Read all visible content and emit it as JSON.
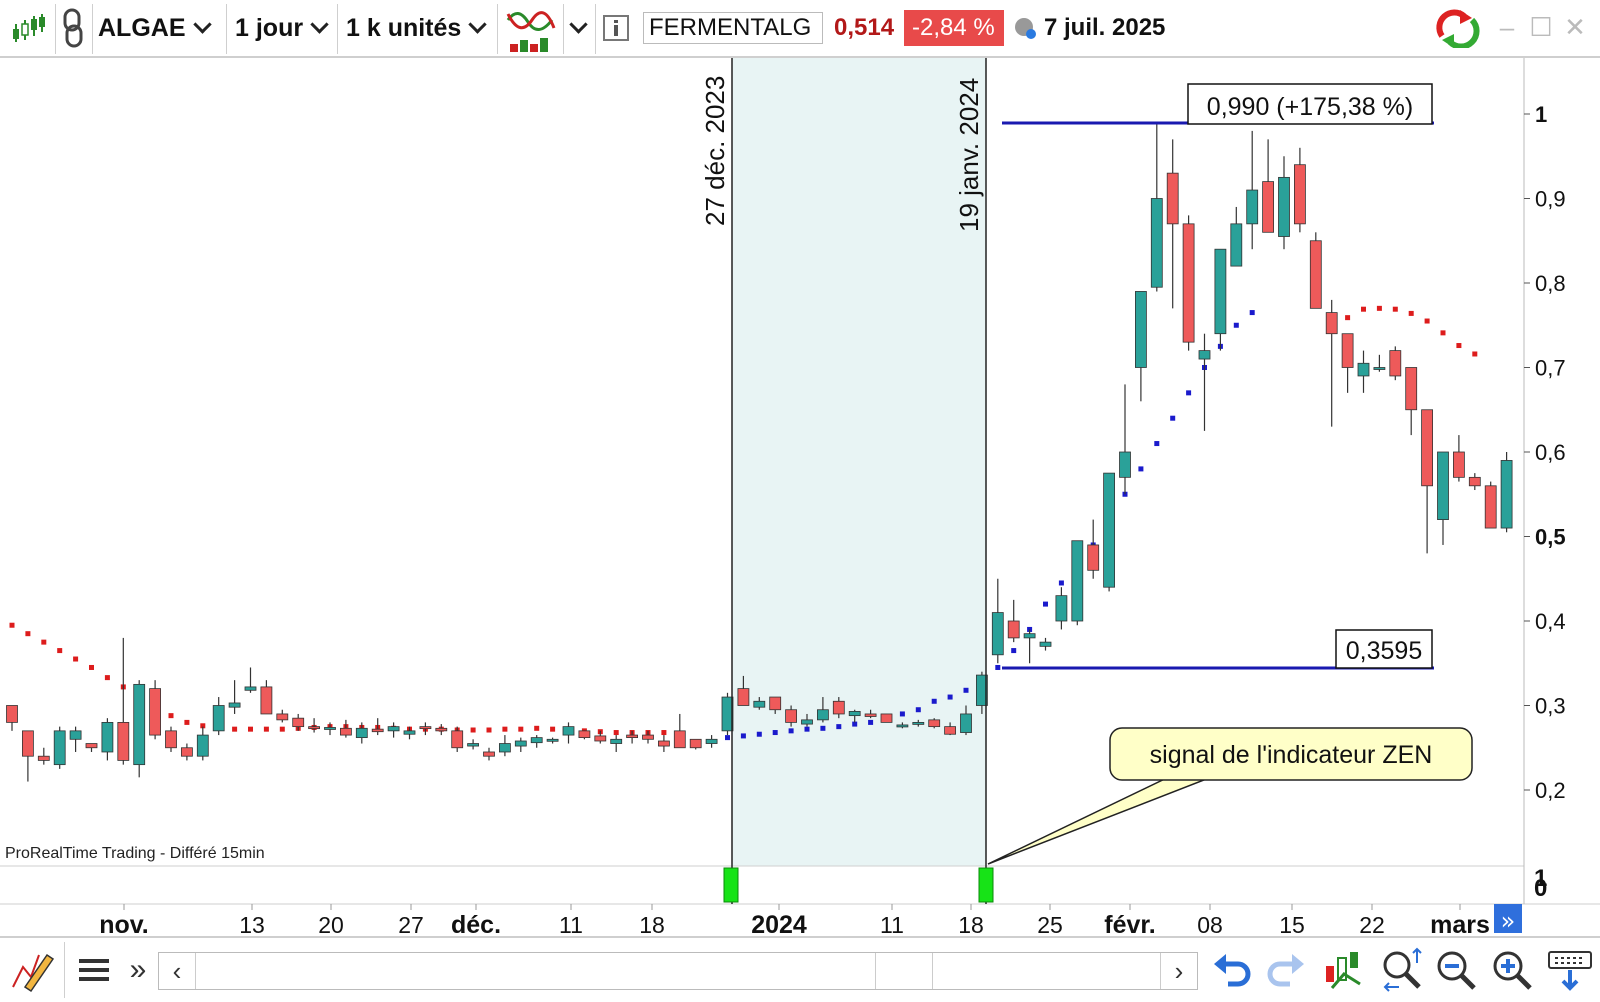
{
  "toolbar": {
    "symbol": "ALGAE",
    "timeframe": "1 jour",
    "units": "1 k unités",
    "instrument_name": "FERMENTALG",
    "last_price": "0,514",
    "change_pct": "-2,84 %",
    "date": "7 juil. 2025",
    "icons": [
      "candlestick-icon",
      "link-icon",
      "indicator-icon",
      "info-icon",
      "clock-icon",
      "refresh-icon",
      "minimize-icon",
      "maximize-icon",
      "close-icon"
    ]
  },
  "chart": {
    "watermark": "ProRealTime Trading - Différé 15min",
    "vlines": [
      "27 déc. 2023",
      "19 janv. 2024"
    ],
    "high_label": "0,990 (+175,38 %)",
    "low_label": "0,3595",
    "callout": "signal de l'indicateur ZEN",
    "y_ticks": [
      "1",
      "0,9",
      "0,8",
      "0,7",
      "0,6",
      "0,5",
      "0,4",
      "0,3",
      "0,2"
    ],
    "sub_ticks": [
      "1",
      "0"
    ],
    "x_ticks": [
      "nov.",
      "13",
      "20",
      "27",
      "déc.",
      "11",
      "18",
      "2024",
      "11",
      "18",
      "25",
      "févr.",
      "08",
      "15",
      "22",
      "mars"
    ],
    "colors": {
      "up": "#2aa199",
      "down": "#ee5a5a",
      "dots_down": "#dd1c1c",
      "dots_up": "#1a1acc",
      "band": "#e8f4f4",
      "hline": "#1a1ab0",
      "signal": "#17e317"
    }
  },
  "chart_data": {
    "type": "candlestick",
    "x_axis": [
      "nov.",
      "13",
      "20",
      "27",
      "déc.",
      "11",
      "18",
      "2024",
      "11",
      "18",
      "25",
      "févr.",
      "08",
      "15",
      "22",
      "mars"
    ],
    "ylim": [
      0.13,
      1.06
    ],
    "candles": [
      [
        0.3,
        0.3,
        0.27,
        0.28
      ],
      [
        0.27,
        0.27,
        0.21,
        0.24
      ],
      [
        0.24,
        0.25,
        0.23,
        0.235
      ],
      [
        0.23,
        0.275,
        0.225,
        0.27
      ],
      [
        0.26,
        0.275,
        0.245,
        0.27
      ],
      [
        0.255,
        0.255,
        0.245,
        0.25
      ],
      [
        0.245,
        0.285,
        0.235,
        0.28
      ],
      [
        0.28,
        0.38,
        0.23,
        0.235
      ],
      [
        0.23,
        0.33,
        0.215,
        0.325
      ],
      [
        0.32,
        0.33,
        0.26,
        0.265
      ],
      [
        0.27,
        0.275,
        0.245,
        0.25
      ],
      [
        0.25,
        0.255,
        0.235,
        0.24
      ],
      [
        0.24,
        0.275,
        0.235,
        0.265
      ],
      [
        0.27,
        0.31,
        0.265,
        0.3
      ],
      [
        0.298,
        0.33,
        0.29,
        0.303
      ],
      [
        0.318,
        0.345,
        0.315,
        0.322
      ],
      [
        0.322,
        0.33,
        0.29,
        0.29
      ],
      [
        0.29,
        0.295,
        0.28,
        0.283
      ],
      [
        0.285,
        0.29,
        0.27,
        0.275
      ],
      [
        0.275,
        0.285,
        0.268,
        0.273
      ],
      [
        0.272,
        0.28,
        0.265,
        0.274
      ],
      [
        0.273,
        0.283,
        0.262,
        0.265
      ],
      [
        0.262,
        0.28,
        0.255,
        0.273
      ],
      [
        0.272,
        0.285,
        0.265,
        0.269
      ],
      [
        0.27,
        0.28,
        0.262,
        0.275
      ],
      [
        0.266,
        0.275,
        0.26,
        0.27
      ],
      [
        0.275,
        0.28,
        0.265,
        0.273
      ],
      [
        0.273,
        0.278,
        0.265,
        0.27
      ],
      [
        0.27,
        0.275,
        0.245,
        0.25
      ],
      [
        0.252,
        0.26,
        0.248,
        0.255
      ],
      [
        0.245,
        0.25,
        0.235,
        0.24
      ],
      [
        0.245,
        0.265,
        0.24,
        0.255
      ],
      [
        0.252,
        0.262,
        0.245,
        0.258
      ],
      [
        0.256,
        0.265,
        0.25,
        0.262
      ],
      [
        0.258,
        0.262,
        0.255,
        0.26
      ],
      [
        0.265,
        0.28,
        0.255,
        0.275
      ],
      [
        0.27,
        0.27,
        0.26,
        0.262
      ],
      [
        0.264,
        0.27,
        0.255,
        0.258
      ],
      [
        0.255,
        0.265,
        0.245,
        0.26
      ],
      [
        0.265,
        0.27,
        0.255,
        0.262
      ],
      [
        0.265,
        0.27,
        0.255,
        0.26
      ],
      [
        0.258,
        0.265,
        0.245,
        0.252
      ],
      [
        0.27,
        0.29,
        0.255,
        0.25
      ],
      [
        0.26,
        0.26,
        0.248,
        0.25
      ],
      [
        0.255,
        0.265,
        0.25,
        0.26
      ],
      [
        0.27,
        0.315,
        0.265,
        0.31
      ],
      [
        0.32,
        0.335,
        0.3,
        0.3
      ],
      [
        0.298,
        0.31,
        0.295,
        0.305
      ],
      [
        0.31,
        0.31,
        0.29,
        0.295
      ],
      [
        0.295,
        0.3,
        0.275,
        0.28
      ],
      [
        0.278,
        0.29,
        0.275,
        0.283
      ],
      [
        0.283,
        0.31,
        0.28,
        0.295
      ],
      [
        0.305,
        0.31,
        0.285,
        0.29
      ],
      [
        0.288,
        0.295,
        0.28,
        0.293
      ],
      [
        0.29,
        0.295,
        0.285,
        0.287
      ],
      [
        0.29,
        0.29,
        0.28,
        0.28
      ],
      [
        0.277,
        0.28,
        0.273,
        0.277
      ],
      [
        0.28,
        0.283,
        0.275,
        0.28
      ],
      [
        0.283,
        0.285,
        0.273,
        0.275
      ],
      [
        0.275,
        0.28,
        0.265,
        0.266
      ],
      [
        0.268,
        0.3,
        0.265,
        0.29
      ],
      [
        0.3,
        0.34,
        0.29,
        0.336
      ],
      [
        0.36,
        0.45,
        0.35,
        0.41
      ],
      [
        0.4,
        0.425,
        0.375,
        0.38
      ],
      [
        0.38,
        0.39,
        0.35,
        0.385
      ],
      [
        0.37,
        0.38,
        0.365,
        0.375
      ],
      [
        0.4,
        0.44,
        0.39,
        0.43
      ],
      [
        0.4,
        0.495,
        0.395,
        0.495
      ],
      [
        0.49,
        0.52,
        0.45,
        0.46
      ],
      [
        0.44,
        0.575,
        0.435,
        0.575
      ],
      [
        0.57,
        0.68,
        0.55,
        0.6
      ],
      [
        0.7,
        0.79,
        0.66,
        0.79
      ],
      [
        0.795,
        0.99,
        0.79,
        0.9
      ],
      [
        0.93,
        0.97,
        0.77,
        0.87
      ],
      [
        0.87,
        0.88,
        0.72,
        0.73
      ],
      [
        0.71,
        0.74,
        0.625,
        0.72
      ],
      [
        0.74,
        0.84,
        0.72,
        0.84
      ],
      [
        0.82,
        0.89,
        0.82,
        0.87
      ],
      [
        0.87,
        0.98,
        0.84,
        0.91
      ],
      [
        0.92,
        0.97,
        0.86,
        0.86
      ],
      [
        0.855,
        0.95,
        0.84,
        0.925
      ],
      [
        0.94,
        0.96,
        0.86,
        0.87
      ],
      [
        0.85,
        0.86,
        0.77,
        0.77
      ],
      [
        0.765,
        0.78,
        0.63,
        0.74
      ],
      [
        0.74,
        0.74,
        0.67,
        0.7
      ],
      [
        0.69,
        0.72,
        0.67,
        0.705
      ],
      [
        0.7,
        0.715,
        0.695,
        0.7
      ],
      [
        0.72,
        0.725,
        0.685,
        0.69
      ],
      [
        0.7,
        0.7,
        0.62,
        0.65
      ],
      [
        0.65,
        0.65,
        0.48,
        0.56
      ],
      [
        0.52,
        0.6,
        0.49,
        0.6
      ],
      [
        0.6,
        0.62,
        0.565,
        0.57
      ],
      [
        0.57,
        0.575,
        0.555,
        0.56
      ],
      [
        0.56,
        0.565,
        0.51,
        0.51
      ],
      [
        0.51,
        0.6,
        0.505,
        0.59
      ]
    ],
    "indicator_dots": {
      "red": [
        0.395,
        0.385,
        0.375,
        0.365,
        0.355,
        0.345,
        0.333,
        0.322,
        0.31,
        0.298,
        0.288,
        0.28,
        0.276,
        0.273,
        0.272,
        0.272,
        0.272,
        0.272,
        0.273,
        0.274,
        0.275,
        0.275,
        0.274,
        0.274,
        0.273,
        0.272,
        0.272,
        0.272,
        0.271,
        0.271,
        0.271,
        0.272,
        0.272,
        0.273,
        0.272,
        0.271,
        0.27,
        0.269,
        0.268,
        0.268,
        0.268,
        0.268,
        0.759,
        0.769,
        0.77,
        0.769,
        0.764,
        0.755,
        0.741,
        0.726,
        0.716
      ],
      "red_start": [
        0,
        42
      ],
      "blue": [
        0.262,
        0.264,
        0.266,
        0.268,
        0.27,
        0.272,
        0.273,
        0.275,
        0.278,
        0.28,
        0.285,
        0.29,
        0.295,
        0.305,
        0.31,
        0.318,
        0.33,
        0.345,
        0.365,
        0.39,
        0.42,
        0.445,
        0.47,
        0.49,
        0.52,
        0.55,
        0.58,
        0.61,
        0.64,
        0.67,
        0.7,
        0.725,
        0.75,
        0.765
      ]
    },
    "signals": [
      "27 déc. 2023",
      "19 janv. 2024"
    ],
    "horizontal_lines": [
      0.99,
      0.3595
    ]
  }
}
